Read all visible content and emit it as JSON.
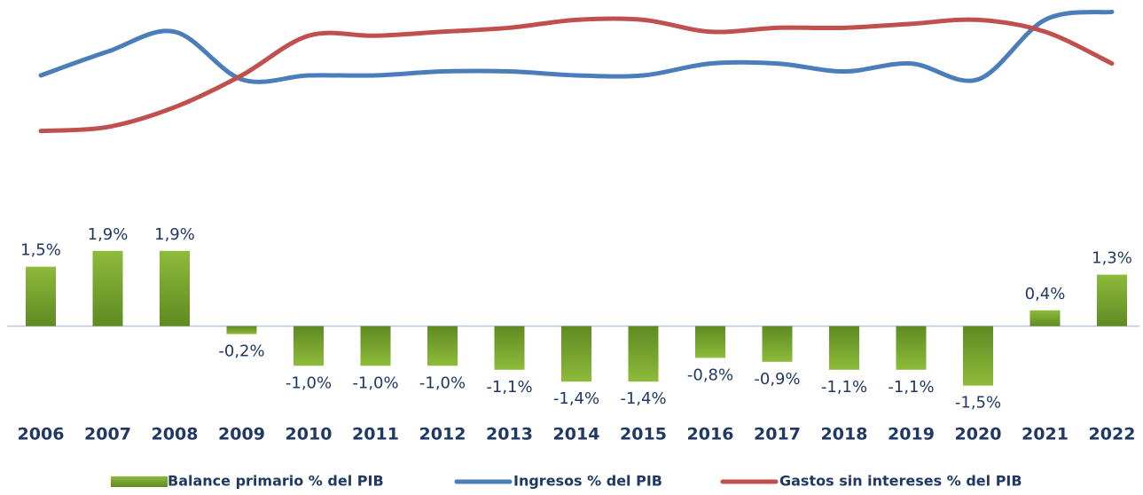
{
  "chart_data": {
    "type": "bar",
    "categories": [
      "2006",
      "2007",
      "2008",
      "2009",
      "2010",
      "2011",
      "2012",
      "2013",
      "2014",
      "2015",
      "2016",
      "2017",
      "2018",
      "2019",
      "2020",
      "2021",
      "2022"
    ],
    "ylim": [
      -2,
      2.5
    ],
    "y2lim": [
      14.1,
      17.9
    ],
    "series": [
      {
        "name": "Balance primario % del PIB",
        "type": "bar",
        "color": "#7fa832",
        "values": [
          1.5,
          1.9,
          1.9,
          -0.2,
          -1.0,
          -1.0,
          -1.0,
          -1.1,
          -1.4,
          -1.4,
          -0.8,
          -0.9,
          -1.1,
          -1.1,
          -1.5,
          0.4,
          1.3
        ],
        "value_labels": [
          "1,5%",
          "1,9%",
          "1,9%",
          "-0,2%",
          "-1,0%",
          "-1,0%",
          "-1,0%",
          "-1,1%",
          "-1,4%",
          "-1,4%",
          "-0,8%",
          "-0,9%",
          "-1,1%",
          "-1,1%",
          "-1,5%",
          "0,4%",
          "1,3%"
        ]
      },
      {
        "name": "Ingresos % del PIB",
        "type": "line",
        "axis": "y2",
        "color": "#4a7ebb",
        "values": [
          16.0,
          16.6,
          17.1,
          15.9,
          16.0,
          16.0,
          16.1,
          16.1,
          16.0,
          16.0,
          16.3,
          16.3,
          16.1,
          16.3,
          15.9,
          17.4,
          17.6
        ]
      },
      {
        "name": "Gastos sin intereses % del PIB",
        "type": "line",
        "axis": "y2",
        "color": "#c0504d",
        "values": [
          14.6,
          14.7,
          15.2,
          16.0,
          17.0,
          17.0,
          17.1,
          17.2,
          17.4,
          17.4,
          17.1,
          17.2,
          17.2,
          17.3,
          17.4,
          17.1,
          16.3
        ]
      }
    ]
  }
}
